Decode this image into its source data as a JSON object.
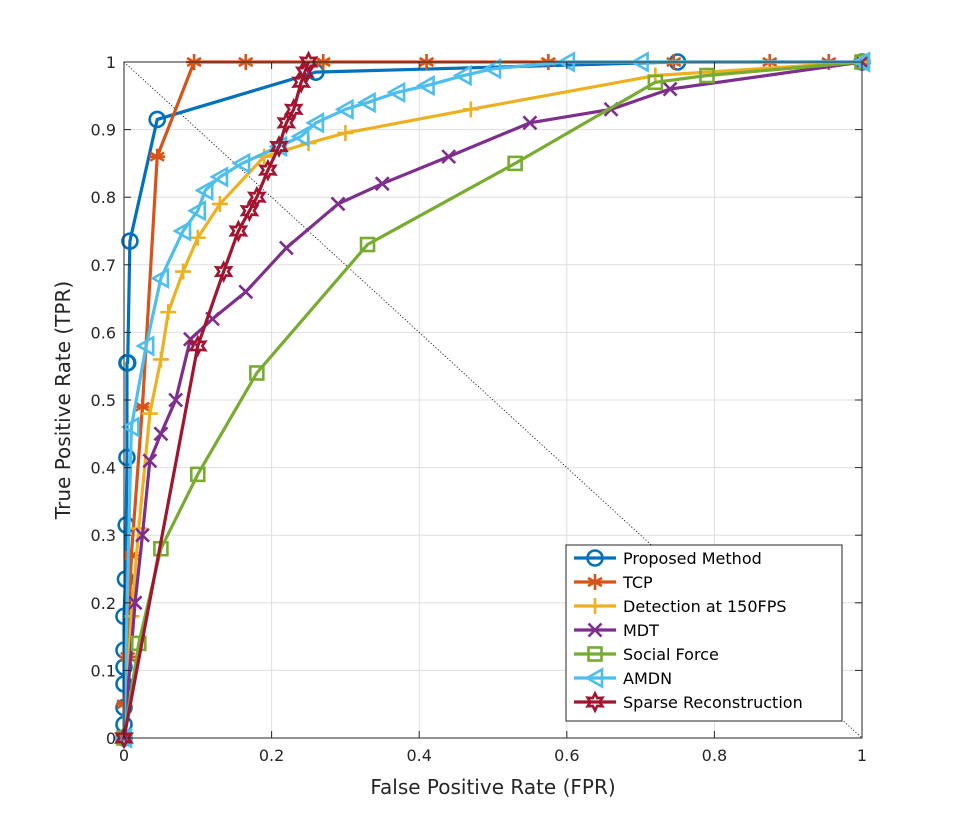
{
  "chart_data": {
    "type": "line",
    "title": "",
    "xlabel": "False Positive Rate (FPR)",
    "ylabel": "True Positive Rate (TPR)",
    "xlim": [
      0,
      1
    ],
    "ylim": [
      0,
      1
    ],
    "grid": true,
    "legend_position": "bottom-right",
    "x_ticks": [
      0,
      0.2,
      0.4,
      0.6,
      0.8,
      1
    ],
    "x_tick_labels": [
      "0",
      "0.2",
      "0.4",
      "0.6",
      "0.8",
      "1"
    ],
    "y_ticks": [
      0,
      0.1,
      0.2,
      0.3,
      0.4,
      0.5,
      0.6,
      0.7,
      0.8,
      0.9,
      1
    ],
    "y_tick_labels": [
      "0",
      "0.1",
      "0.2",
      "0.3",
      "0.4",
      "0.5",
      "0.6",
      "0.7",
      "0.8",
      "0.9",
      "1"
    ],
    "reference_line": {
      "from": [
        0,
        1
      ],
      "to": [
        1,
        0
      ],
      "style": "dotted"
    },
    "series": [
      {
        "name": "Proposed Method",
        "color": "#0072BD",
        "marker": "circle",
        "x": [
          0,
          0,
          0,
          0,
          0,
          0,
          0,
          0.002,
          0.003,
          0.004,
          0.004,
          0.005,
          0.008,
          0.045,
          0.26,
          0.75,
          1
        ],
        "y": [
          0,
          0.02,
          0.045,
          0.08,
          0.105,
          0.13,
          0.18,
          0.235,
          0.315,
          0.415,
          0.555,
          0.555,
          0.735,
          0.915,
          0.985,
          1,
          1
        ]
      },
      {
        "name": "TCP",
        "color": "#D95319",
        "marker": "asterisk",
        "x": [
          0,
          0,
          0.005,
          0.01,
          0.025,
          0.045,
          0.095,
          0.165,
          0.27,
          0.41,
          0.575,
          0.745,
          0.875,
          0.955,
          1
        ],
        "y": [
          0,
          0.05,
          0.12,
          0.27,
          0.49,
          0.86,
          1,
          1,
          1,
          1,
          1,
          1,
          1,
          1,
          1
        ]
      },
      {
        "name": "Detection at 150FPS",
        "color": "#EDB120",
        "marker": "plus",
        "x": [
          0,
          0.01,
          0.02,
          0.035,
          0.05,
          0.06,
          0.08,
          0.1,
          0.13,
          0.19,
          0.25,
          0.3,
          0.47,
          0.72,
          1
        ],
        "y": [
          0,
          0.18,
          0.31,
          0.48,
          0.56,
          0.63,
          0.69,
          0.74,
          0.79,
          0.86,
          0.88,
          0.895,
          0.93,
          0.98,
          1
        ]
      },
      {
        "name": "MDT",
        "color": "#7E2F8E",
        "marker": "x",
        "x": [
          0,
          0.015,
          0.025,
          0.035,
          0.05,
          0.07,
          0.09,
          0.12,
          0.165,
          0.22,
          0.29,
          0.35,
          0.44,
          0.55,
          0.66,
          0.74,
          1
        ],
        "y": [
          0,
          0.2,
          0.3,
          0.41,
          0.45,
          0.5,
          0.59,
          0.62,
          0.66,
          0.725,
          0.79,
          0.82,
          0.86,
          0.91,
          0.93,
          0.96,
          1
        ]
      },
      {
        "name": "Social Force",
        "color": "#77AC30",
        "marker": "square",
        "x": [
          0,
          0.02,
          0.05,
          0.1,
          0.18,
          0.33,
          0.53,
          0.72,
          0.79,
          1
        ],
        "y": [
          0,
          0.14,
          0.28,
          0.39,
          0.54,
          0.73,
          0.85,
          0.97,
          0.98,
          1
        ]
      },
      {
        "name": "AMDN",
        "color": "#4DBEEE",
        "marker": "triangle-left",
        "x": [
          0,
          0.01,
          0.03,
          0.05,
          0.08,
          0.1,
          0.11,
          0.13,
          0.16,
          0.21,
          0.24,
          0.26,
          0.3,
          0.33,
          0.37,
          0.41,
          0.46,
          0.5,
          0.6,
          0.7,
          1
        ],
        "y": [
          0,
          0.46,
          0.58,
          0.68,
          0.75,
          0.78,
          0.81,
          0.83,
          0.85,
          0.875,
          0.89,
          0.91,
          0.93,
          0.94,
          0.955,
          0.965,
          0.98,
          0.99,
          1,
          1,
          1
        ]
      },
      {
        "name": "Sparse Reconstruction",
        "color": "#A2142F",
        "marker": "hexagram",
        "x": [
          0,
          0.1,
          0.135,
          0.155,
          0.17,
          0.18,
          0.195,
          0.21,
          0.22,
          0.23,
          0.24,
          0.245,
          0.25
        ],
        "y": [
          0,
          0.58,
          0.69,
          0.75,
          0.78,
          0.8,
          0.84,
          0.875,
          0.91,
          0.93,
          0.97,
          0.985,
          1
        ]
      }
    ]
  }
}
